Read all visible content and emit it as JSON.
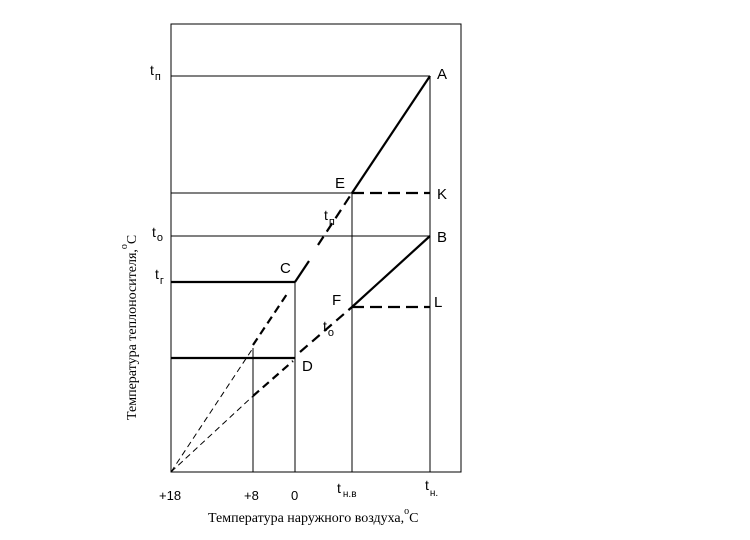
{
  "axes": {
    "y_title": "Температура теплоносителя,",
    "y_unit_sup": "o",
    "y_unit": "C",
    "x_title": "Температура наружного воздуха,",
    "x_unit_sup": "o",
    "x_unit": "C"
  },
  "x_ticks": {
    "plus18": "+18",
    "plus8": "+8",
    "zero": "0",
    "t_nv_main": "t",
    "t_nv_sub": "н.в",
    "t_n_main": "t",
    "t_n_sub": "н."
  },
  "y_ticks": {
    "t_p_main": "t",
    "t_p_sub": "п",
    "t_o_main": "t",
    "t_o_sub": "о",
    "t_g_main": "t",
    "t_g_sub": "г"
  },
  "points": {
    "A": "A",
    "B": "B",
    "C": "C",
    "D": "D",
    "E": "E",
    "F": "F",
    "K": "K",
    "L": "L"
  },
  "curve_labels": {
    "supply_main": "t",
    "supply_sub": "п",
    "return_main": "t",
    "return_sub": "о"
  }
}
